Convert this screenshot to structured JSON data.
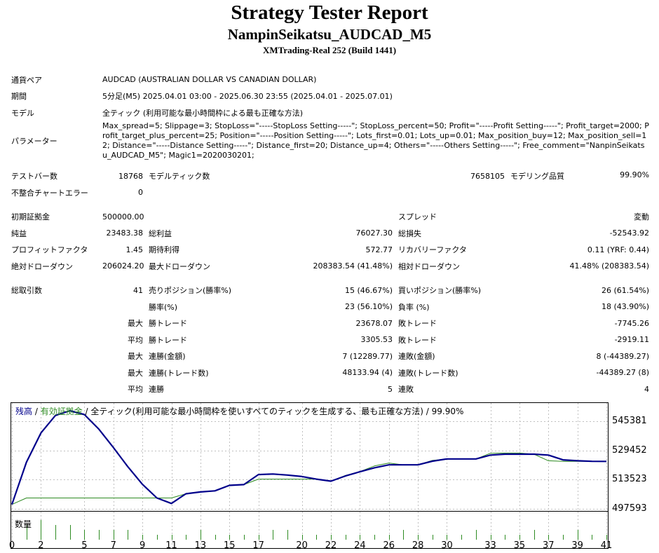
{
  "header": {
    "title": "Strategy Tester Report",
    "ea_name": "NampinSeikatsu_AUDCAD_M5",
    "server": "XMTrading-Real 252 (Build 1441)"
  },
  "info": {
    "symbol_label": "通貨ペア",
    "symbol_value": "AUDCAD (AUSTRALIAN DOLLAR VS CANADIAN DOLLAR)",
    "period_label": "期間",
    "period_value": "5分足(M5) 2025.04.01 03:00 - 2025.06.30 23:55 (2025.04.01 - 2025.07.01)",
    "model_label": "モデル",
    "model_value": "全ティック (利用可能な最小時間枠による最も正確な方法)",
    "params_label": "パラメーター",
    "params_value": "Max_spread=5; Slippage=3; StopLoss=\"-----StopLoss Setting-----\"; StopLoss_percent=50; Profit=\"-----Profit Setting-----\"; Profit_target=2000; Profit_target_plus_percent=25; Position=\"-----Position Setting-----\"; Lots_first=0.01; Lots_up=0.01; Max_position_buy=12; Max_position_sell=12; Distance=\"-----Distance Setting-----\"; Distance_first=20; Distance_up=4; Others=\"-----Others Setting-----\"; Free_comment=\"NanpinSeikatsu_AUDCAD_M5\"; Magic1=2020030201;"
  },
  "stats": {
    "bars_label": "テストバー数",
    "bars_value": "18768",
    "ticks_label": "モデルティック数",
    "ticks_value": "7658105",
    "quality_label": "モデリング品質",
    "quality_value": "99.90%",
    "errors_label": "不整合チャートエラー",
    "errors_value": "0",
    "deposit_label": "初期証拠金",
    "deposit_value": "500000.00",
    "spread_label": "スプレッド",
    "spread_value": "変動",
    "net_label": "純益",
    "net_value": "23483.38",
    "gross_profit_label": "総利益",
    "gross_profit_value": "76027.30",
    "gross_loss_label": "総損失",
    "gross_loss_value": "-52543.92",
    "pf_label": "プロフィットファクタ",
    "pf_value": "1.45",
    "expected_label": "期待利得",
    "expected_value": "572.77",
    "recovery_label": "リカバリーファクタ",
    "recovery_value": "0.11 (YRF: 0.44)",
    "abs_dd_label": "絶対ドローダウン",
    "abs_dd_value": "206024.20",
    "max_dd_label": "最大ドローダウン",
    "max_dd_value": "208383.54 (41.48%)",
    "rel_dd_label": "相対ドローダウン",
    "rel_dd_value": "41.48% (208383.54)",
    "trades_label": "総取引数",
    "trades_value": "41",
    "short_label": "売りポジション(勝率%)",
    "short_value": "15 (46.67%)",
    "long_label": "買いポジション(勝率%)",
    "long_value": "26 (61.54%)",
    "winrate_label": "勝率(%)",
    "winrate_value": "23 (56.10%)",
    "lossrate_label": "負率 (%)",
    "lossrate_value": "18 (43.90%)",
    "max_word": "最大",
    "avg_word": "平均",
    "max_win_label": "勝トレード",
    "max_win_value": "23678.07",
    "max_loss_label": "敗トレード",
    "max_loss_value": "-7745.26",
    "avg_win_label": "勝トレード",
    "avg_win_value": "3305.53",
    "avg_loss_label": "敗トレード",
    "avg_loss_value": "-2919.11",
    "cons_win_amt_label": "連勝(金額)",
    "cons_win_amt_value": "7 (12289.77)",
    "cons_loss_amt_label": "連敗(金額)",
    "cons_loss_amt_value": "8 (-44389.27)",
    "cons_win_cnt_label": "連勝(トレード数)",
    "cons_win_cnt_value": "48133.94 (4)",
    "cons_loss_cnt_label": "連敗(トレード数)",
    "cons_loss_cnt_value": "-44389.27 (8)",
    "avg_cons_win_label": "連勝",
    "avg_cons_win_value": "5",
    "avg_cons_loss_label": "連敗",
    "avg_cons_loss_value": "4"
  },
  "legend": {
    "balance": "残高",
    "sep1": " / ",
    "equity": "有効証拠金",
    "rest": " / 全ティック(利用可能な最小時間枠を使いすべてのティックを生成する、最も正確な方法) / 99.90%",
    "lots_label": "数量"
  },
  "colors": {
    "balance": "#00008b",
    "equity": "#2e8b22",
    "grid": "#c0c0c0"
  },
  "chart_data": {
    "type": "line",
    "y_ticks": [
      "545381",
      "529452",
      "513523",
      "497593"
    ],
    "x_ticks": [
      "0",
      "2",
      "5",
      "7",
      "9",
      "11",
      "13",
      "15",
      "17",
      "20",
      "22",
      "24",
      "26",
      "28",
      "30",
      "33",
      "35",
      "37",
      "39",
      "41"
    ],
    "ylim": [
      497593,
      551100
    ],
    "series": [
      {
        "name": "残高",
        "x": [
          0,
          1,
          2,
          3,
          4,
          5,
          6,
          7,
          8,
          9,
          10,
          11,
          12,
          13,
          14,
          15,
          16,
          17,
          18,
          19,
          20,
          21,
          22,
          23,
          24,
          25,
          26,
          27,
          28,
          29,
          30,
          31,
          32,
          33,
          34,
          35,
          36,
          37,
          38,
          39,
          40,
          41
        ],
        "y": [
          500000,
          523000,
          539000,
          548500,
          551100,
          549000,
          541000,
          531000,
          520500,
          511000,
          503500,
          500550,
          505800,
          506800,
          507400,
          510400,
          510800,
          516300,
          516600,
          516000,
          515200,
          513800,
          512700,
          515500,
          517800,
          520000,
          521600,
          521600,
          521600,
          523600,
          524800,
          524800,
          524800,
          526900,
          527400,
          527400,
          527400,
          526900,
          524300,
          523800,
          523500,
          523483
        ]
      },
      {
        "name": "有効証拠金",
        "x": [
          0,
          1,
          2,
          3,
          4,
          5,
          6,
          7,
          8,
          9,
          10,
          11,
          12,
          13,
          14,
          15,
          16,
          17,
          18,
          19,
          20,
          21,
          22,
          23,
          24,
          25,
          26,
          27,
          28,
          29,
          30,
          31,
          32,
          33,
          34,
          35,
          36,
          37,
          38,
          39,
          40,
          41
        ],
        "y": [
          500000,
          503500,
          503500,
          503500,
          503500,
          503500,
          503500,
          503500,
          503500,
          503500,
          503500,
          503500,
          505800,
          506800,
          507400,
          510600,
          510800,
          513800,
          513800,
          513800,
          513800,
          513800,
          512700,
          515800,
          517900,
          521000,
          522600,
          521600,
          521600,
          524000,
          524800,
          524800,
          524800,
          527900,
          528000,
          528000,
          527400,
          523800,
          523500,
          523500,
          523500,
          523483
        ]
      }
    ],
    "lots": {
      "name": "数量",
      "values": [
        0.01,
        0.03,
        0.04,
        0.03,
        0.03,
        0.02,
        0.02,
        0.02,
        0.02,
        0.01,
        0.01,
        0.01,
        0.01,
        0.02,
        0.01,
        0.01,
        0.01,
        0.01,
        0.02,
        0.02,
        0.01,
        0.01,
        0.01,
        0.01,
        0.01,
        0.01,
        0.01,
        0.02,
        0.01,
        0.01,
        0.01,
        0.01,
        0.02,
        0.01,
        0.01,
        0.01,
        0.02,
        0.01,
        0.01,
        0.02,
        0.01,
        0.01
      ]
    }
  }
}
